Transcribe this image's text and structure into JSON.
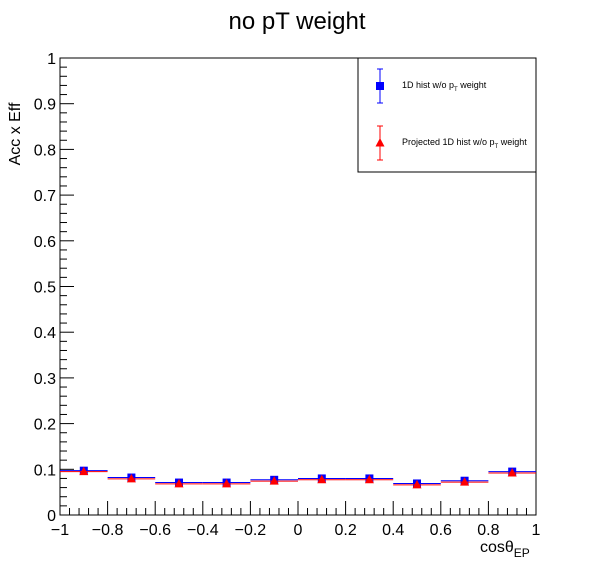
{
  "chart_data": {
    "type": "scatter",
    "title": "no pT weight",
    "ylabel": "Acc x Eff",
    "xlabel_main": "cosθ",
    "xlabel_sub": "EP",
    "xlim": [
      -1,
      1
    ],
    "ylim": [
      0,
      1
    ],
    "x_ticks": [
      -1,
      -0.8,
      -0.6,
      -0.4,
      -0.2,
      0,
      0.2,
      0.4,
      0.6,
      0.8,
      1
    ],
    "x_tick_labels": [
      "−1",
      "−0.8",
      "−0.6",
      "−0.4",
      "−0.2",
      "0",
      "0.2",
      "0.4",
      "0.6",
      "0.8",
      "1"
    ],
    "y_ticks": [
      0,
      0.1,
      0.2,
      0.3,
      0.4,
      0.5,
      0.6,
      0.7,
      0.8,
      0.9,
      1
    ],
    "y_tick_labels": [
      "0",
      "0.1",
      "0.2",
      "0.3",
      "0.4",
      "0.5",
      "0.6",
      "0.7",
      "0.8",
      "0.9",
      "1"
    ],
    "grid": false,
    "legend_placement": "top-right",
    "x": [
      -0.9,
      -0.7,
      -0.5,
      -0.3,
      -0.1,
      0.1,
      0.3,
      0.5,
      0.7,
      0.9
    ],
    "x_bin_half_width": 0.1,
    "series": [
      {
        "name": "1D hist w/o p",
        "name_sub": "T",
        "name_suffix": " weight",
        "marker": "square",
        "color": "#0000ff",
        "values": [
          0.097,
          0.082,
          0.071,
          0.071,
          0.077,
          0.08,
          0.08,
          0.069,
          0.075,
          0.095
        ]
      },
      {
        "name": "Projected 1D hist w/o p",
        "name_sub": "T",
        "name_suffix": " weight",
        "marker": "triangle",
        "color": "#ff0000",
        "values": [
          0.095,
          0.079,
          0.068,
          0.068,
          0.074,
          0.077,
          0.077,
          0.066,
          0.072,
          0.092
        ]
      }
    ]
  }
}
